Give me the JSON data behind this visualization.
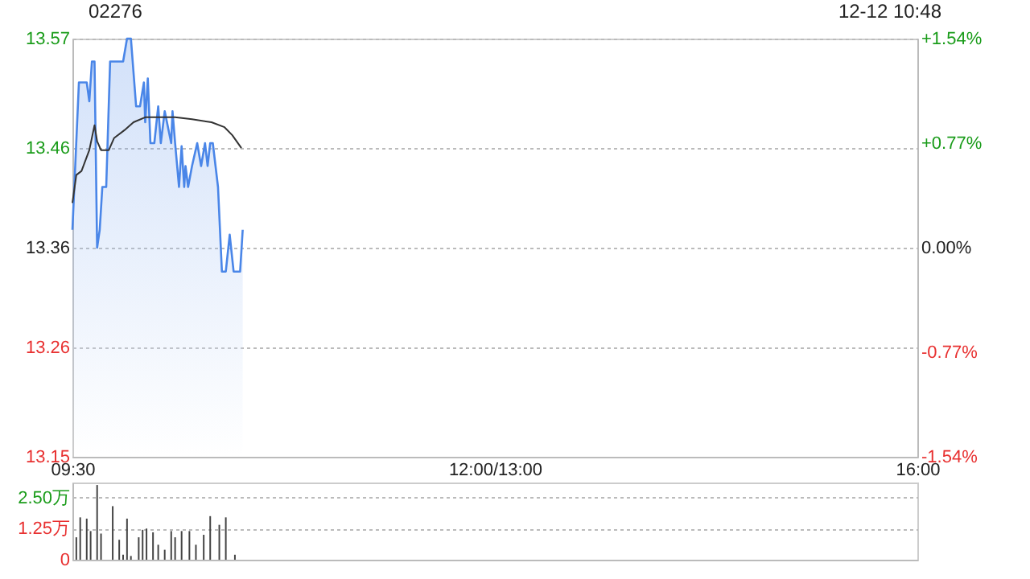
{
  "chart_data": [
    {
      "type": "line",
      "title": "02276",
      "annotations": [
        "12-12 10:48"
      ],
      "xlim": [
        9.5,
        16
      ],
      "xticks": [
        {
          "value": 9.5,
          "label": "09:30"
        },
        {
          "value": 12.75,
          "label": "12:00/13:00"
        },
        {
          "value": 16,
          "label": "16:00"
        }
      ],
      "ylim": [
        13.15,
        13.57
      ],
      "yticks": [
        13.15,
        13.26,
        13.36,
        13.46,
        13.57
      ],
      "y2lim": [
        -1.54,
        1.54
      ],
      "y2ticks": [
        {
          "value": 1.54,
          "label": "+1.54%"
        },
        {
          "value": 0.77,
          "label": "+0.77%"
        },
        {
          "value": 0,
          "label": "0.00%"
        },
        {
          "value": -0.77,
          "label": "-0.77%"
        },
        {
          "value": -1.54,
          "label": "-1.54%"
        }
      ],
      "grid": "y",
      "series": [
        {
          "type": "area",
          "color": "#4a86e8",
          "x": [
            9.5,
            9.55,
            9.61,
            9.63,
            9.65,
            9.67,
            9.69,
            9.71,
            9.73,
            9.76,
            9.79,
            9.89,
            9.92,
            9.95,
            9.99,
            10.02,
            10.05,
            10.06,
            10.08,
            10.1,
            10.13,
            10.16,
            10.18,
            10.21,
            10.26,
            10.27,
            10.29,
            10.32,
            10.34,
            10.36,
            10.37,
            10.39,
            10.42,
            10.46,
            10.49,
            10.52,
            10.54,
            10.56,
            10.58,
            10.62,
            10.65,
            10.68,
            10.71,
            10.74,
            10.79,
            10.81
          ],
          "values": [
            13.378,
            13.526,
            13.526,
            13.507,
            13.547,
            13.547,
            13.36,
            13.378,
            13.421,
            13.421,
            13.547,
            13.547,
            13.57,
            13.57,
            13.502,
            13.502,
            13.526,
            13.486,
            13.53,
            13.465,
            13.465,
            13.502,
            13.465,
            13.497,
            13.465,
            13.497,
            13.465,
            13.421,
            13.462,
            13.421,
            13.442,
            13.421,
            13.442,
            13.465,
            13.442,
            13.465,
            13.442,
            13.465,
            13.465,
            13.421,
            13.336,
            13.336,
            13.373,
            13.336,
            13.336,
            13.378
          ]
        },
        {
          "type": "line",
          "color": "#333333",
          "x": [
            9.5,
            9.53,
            9.57,
            9.63,
            9.67,
            9.69,
            9.72,
            9.78,
            9.82,
            9.9,
            9.97,
            10.06,
            10.29,
            10.42,
            10.57,
            10.67,
            10.73,
            10.8
          ],
          "values": [
            13.405,
            13.433,
            13.437,
            13.458,
            13.483,
            13.467,
            13.458,
            13.458,
            13.47,
            13.478,
            13.486,
            13.491,
            13.491,
            13.489,
            13.486,
            13.481,
            13.473,
            13.46
          ]
        }
      ]
    },
    {
      "type": "bar",
      "xlim": [
        9.5,
        16
      ],
      "ylim": [
        0,
        3.1
      ],
      "yticks": [
        0,
        {
          "value": 1.25,
          "label": "1.25万"
        },
        {
          "value": 2.5,
          "label": "2.50万"
        }
      ],
      "grid": "y",
      "tick_labels": "y",
      "color": "#444444",
      "x": [
        9.53,
        9.56,
        9.61,
        9.64,
        9.69,
        9.72,
        9.81,
        9.86,
        9.89,
        9.92,
        9.95,
        10.01,
        10.04,
        10.07,
        10.12,
        10.16,
        10.21,
        10.26,
        10.29,
        10.34,
        10.4,
        10.45,
        10.51,
        10.56,
        10.63,
        10.68,
        10.75
      ],
      "values": [
        0.9,
        1.7,
        1.65,
        1.15,
        3.0,
        1.05,
        2.15,
        0.8,
        0.2,
        1.65,
        0.15,
        0.9,
        1.2,
        1.25,
        1.1,
        0.6,
        0.4,
        1.15,
        0.9,
        1.15,
        1.15,
        0.6,
        1.0,
        1.75,
        1.4,
        1.7,
        0.2
      ]
    }
  ]
}
